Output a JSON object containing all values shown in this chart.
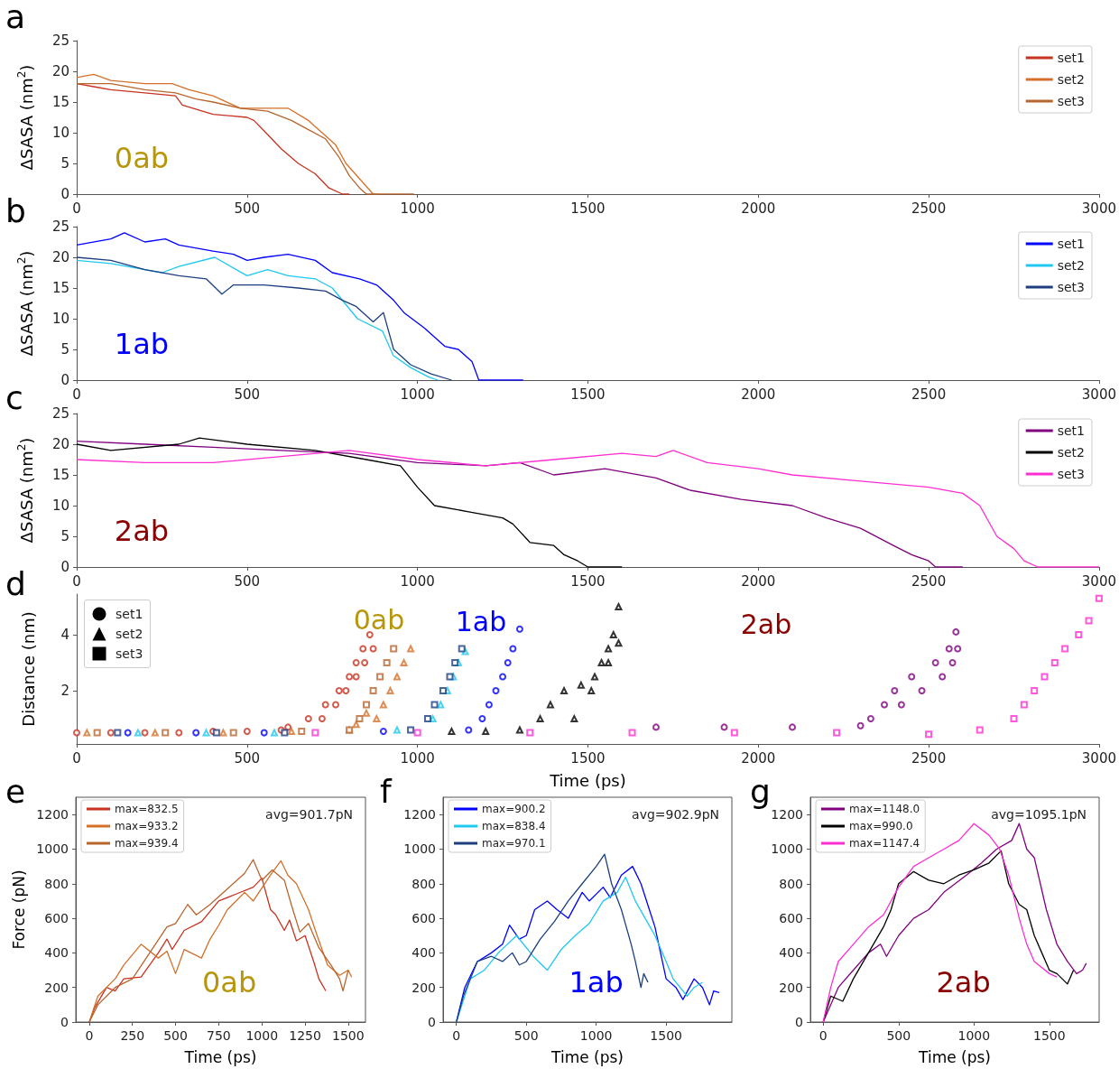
{
  "chart_data": [
    {
      "type": "line",
      "title": "a",
      "ylabel": "ΔSASA (nm$^{2}$)",
      "xlim": [
        0,
        3000
      ],
      "xticks": [
        0,
        500,
        1000,
        1500,
        2000,
        2500,
        3000
      ],
      "ylim": [
        0,
        25
      ],
      "yticks": [
        0,
        5,
        10,
        15,
        20,
        25
      ],
      "grid": false,
      "legend": "top right",
      "annotations": [
        "0ab"
      ],
      "series": [
        {
          "name": "set1",
          "color": "#c83220",
          "x": [
            0,
            50,
            100,
            200,
            290,
            310,
            400,
            500,
            520,
            550,
            600,
            650,
            700,
            740,
            780,
            800
          ],
          "values": [
            18,
            17.5,
            17,
            16.5,
            16,
            14.5,
            13,
            12.5,
            12,
            10.3,
            7.4,
            5,
            3.3,
            1,
            0,
            0
          ]
        },
        {
          "name": "set2",
          "color": "#d4702a",
          "x": [
            0,
            50,
            100,
            200,
            280,
            330,
            400,
            480,
            550,
            620,
            680,
            720,
            760,
            790,
            830,
            870,
            880
          ],
          "values": [
            19,
            19.5,
            18.5,
            18,
            18,
            17,
            16,
            14,
            14,
            14,
            12,
            10,
            8,
            5,
            2.5,
            0,
            0
          ]
        },
        {
          "name": "set3",
          "color": "#b8652e",
          "x": [
            0,
            100,
            200,
            290,
            350,
            400,
            480,
            560,
            630,
            680,
            730,
            770,
            800,
            830,
            850,
            990
          ],
          "values": [
            18,
            18,
            17,
            16.5,
            15.5,
            15,
            14,
            13.5,
            12,
            10.5,
            9,
            6,
            3,
            1,
            0,
            0
          ]
        }
      ]
    },
    {
      "type": "line",
      "title": "b",
      "ylabel": "ΔSASA (nm$^{2}$)",
      "xlim": [
        0,
        3000
      ],
      "xticks": [
        0,
        500,
        1000,
        1500,
        2000,
        2500,
        3000
      ],
      "ylim": [
        0,
        25
      ],
      "yticks": [
        0,
        5,
        10,
        15,
        20,
        25
      ],
      "grid": false,
      "legend": "top right",
      "annotations": [
        "1ab"
      ],
      "series": [
        {
          "name": "set1",
          "color": "#0000ff",
          "x": [
            0,
            100,
            140,
            200,
            260,
            300,
            400,
            460,
            500,
            550,
            620,
            700,
            750,
            830,
            880,
            930,
            960,
            1020,
            1080,
            1120,
            1160,
            1180,
            1310
          ],
          "values": [
            22,
            23,
            24,
            22.5,
            23,
            22,
            21,
            20.5,
            19.5,
            20,
            20.5,
            19.5,
            17.5,
            16.5,
            15.5,
            13,
            11,
            8.5,
            5.5,
            5,
            3,
            0,
            0
          ]
        },
        {
          "name": "set2",
          "color": "#1ec8f0",
          "x": [
            0,
            100,
            200,
            250,
            300,
            405,
            500,
            560,
            620,
            700,
            750,
            824,
            897,
            929,
            981,
            1033,
            1060
          ],
          "values": [
            19.5,
            19,
            18,
            17.5,
            18.5,
            20,
            17,
            18,
            17,
            16.5,
            15,
            10,
            8,
            4,
            2,
            0.5,
            0
          ]
        },
        {
          "name": "set3",
          "color": "#1d3f80",
          "x": [
            0,
            100,
            200,
            300,
            380,
            426,
            460,
            550,
            650,
            730,
            780,
            820,
            870,
            900,
            930,
            980,
            1040,
            1100
          ],
          "values": [
            20,
            19.5,
            18,
            17,
            16.5,
            14,
            15.5,
            15.5,
            15,
            14.5,
            13,
            12,
            9.5,
            11,
            5,
            2.5,
            1,
            0
          ]
        }
      ]
    },
    {
      "type": "line",
      "title": "c",
      "ylabel": "ΔSASA (nm$^{2}$)",
      "xlim": [
        0,
        3000
      ],
      "xticks": [
        0,
        500,
        1000,
        1500,
        2000,
        2500,
        3000
      ],
      "ylim": [
        0,
        25
      ],
      "yticks": [
        0,
        5,
        10,
        15,
        20,
        25
      ],
      "grid": false,
      "legend": "top right",
      "annotations": [
        "2ab"
      ],
      "series": [
        {
          "name": "set1",
          "color": "#800080",
          "x": [
            0,
            200,
            400,
            600,
            800,
            1000,
            1200,
            1300,
            1400,
            1550,
            1700,
            1800,
            1950,
            2100,
            2200,
            2300,
            2400,
            2450,
            2500,
            2520,
            2600
          ],
          "values": [
            20.5,
            20,
            19.5,
            19,
            18.5,
            17,
            16.5,
            17,
            15,
            16,
            14.5,
            12.5,
            11,
            10,
            8,
            6.3,
            3.4,
            2,
            1,
            0,
            0
          ]
        },
        {
          "name": "set2",
          "color": "#000000",
          "x": [
            0,
            100,
            300,
            360,
            500,
            700,
            850,
            950,
            1000,
            1050,
            1150,
            1250,
            1280,
            1330,
            1400,
            1430,
            1470,
            1500,
            1600
          ],
          "values": [
            20,
            19,
            20,
            21,
            20,
            19,
            17.5,
            16.5,
            13,
            10,
            9,
            8,
            7,
            4,
            3.5,
            2,
            1,
            0,
            0
          ]
        },
        {
          "name": "set3",
          "color": "#ff2ed2",
          "x": [
            0,
            200,
            400,
            600,
            800,
            1000,
            1200,
            1400,
            1600,
            1700,
            1750,
            1850,
            2000,
            2100,
            2300,
            2500,
            2600,
            2650,
            2700,
            2750,
            2780,
            2820,
            3000
          ],
          "values": [
            17.5,
            17,
            17,
            18,
            19,
            17.5,
            16.5,
            17.5,
            18.5,
            18,
            19,
            17,
            16,
            15,
            14,
            13,
            12,
            10,
            5,
            3,
            1,
            0,
            0
          ]
        }
      ]
    },
    {
      "type": "scatter",
      "title": "d",
      "xlabel": "Time (ps)",
      "ylabel": "Distance (nm)",
      "xlim": [
        0,
        3000
      ],
      "xticks": [
        0,
        500,
        1000,
        1500,
        2000,
        2500,
        3000
      ],
      "ylim": [
        0.1,
        5.45
      ],
      "yticks": [
        2,
        4
      ],
      "grid": false,
      "annotations": [
        "set1",
        "set2",
        "set3",
        "0ab",
        "1ab",
        "2ab"
      ],
      "series": [
        {
          "color": "#c83220",
          "marker": "circle",
          "x": [
            0,
            100,
            200,
            300,
            400,
            500,
            600,
            620,
            680,
            720,
            730,
            760,
            770,
            790,
            800,
            820,
            820,
            840,
            845,
            860,
            870
          ],
          "values": [
            0.5,
            0.5,
            0.5,
            0.5,
            0.55,
            0.55,
            0.6,
            0.7,
            1,
            1,
            1.5,
            1.5,
            2,
            2,
            2.5,
            2.5,
            3,
            3.5,
            3,
            4,
            3.5
          ]
        },
        {
          "color": "#d4702a",
          "marker": "triangle",
          "x": [
            30,
            230,
            430,
            630,
            800,
            820,
            850,
            880,
            900,
            920,
            940,
            960,
            980
          ],
          "values": [
            0.5,
            0.5,
            0.5,
            0.55,
            0.6,
            0.8,
            1.2,
            1,
            1.5,
            2,
            2.5,
            3,
            3.5
          ]
        },
        {
          "color": "#b8652e",
          "marker": "square",
          "x": [
            60,
            260,
            460,
            660,
            800,
            830,
            850,
            870,
            890,
            910,
            930
          ],
          "values": [
            0.5,
            0.5,
            0.5,
            0.55,
            0.6,
            1,
            1.5,
            2,
            2.5,
            3,
            3.5
          ]
        },
        {
          "color": "#0000ff",
          "marker": "circle",
          "x": [
            150,
            350,
            550,
            900,
            1150,
            1190,
            1210,
            1230,
            1250,
            1265,
            1280,
            1300
          ],
          "values": [
            0.5,
            0.5,
            0.5,
            0.55,
            0.6,
            1,
            1.5,
            2,
            2.5,
            3,
            3.5,
            4.2
          ]
        },
        {
          "color": "#1ec8f0",
          "marker": "triangle",
          "x": [
            180,
            380,
            580,
            940,
            1045,
            1068,
            1088,
            1105,
            1120,
            1140
          ],
          "values": [
            0.5,
            0.5,
            0.5,
            0.6,
            1,
            1.5,
            2,
            2.5,
            3,
            3.4
          ]
        },
        {
          "color": "#1d3f80",
          "marker": "square",
          "x": [
            120,
            410,
            610,
            980,
            1030,
            1050,
            1075,
            1095,
            1110,
            1130
          ],
          "values": [
            0.5,
            0.5,
            0.5,
            0.6,
            1,
            1.5,
            2,
            2.5,
            3,
            3.5
          ]
        },
        {
          "color": "#800080",
          "marker": "circle",
          "x": [
            1700,
            1900,
            2100,
            2300,
            2330,
            2370,
            2400,
            2420,
            2450,
            2480,
            2520,
            2540,
            2560,
            2570,
            2580,
            2585
          ],
          "values": [
            0.7,
            0.7,
            0.7,
            0.75,
            1,
            1.5,
            2,
            1.5,
            2.5,
            2,
            3,
            2.5,
            3.5,
            3,
            4.1,
            3.5
          ]
        },
        {
          "color": "#000000",
          "marker": "triangle",
          "x": [
            1100,
            1200,
            1300,
            1360,
            1390,
            1430,
            1460,
            1480,
            1510,
            1520,
            1540,
            1560,
            1560,
            1575,
            1590,
            1590
          ],
          "values": [
            0.55,
            0.55,
            0.6,
            1,
            1.5,
            2,
            1,
            2.2,
            2,
            2.5,
            3,
            3.5,
            3,
            4,
            5,
            3.7
          ]
        },
        {
          "color": "#ff2ed2",
          "marker": "square",
          "x": [
            700,
            1000,
            1330,
            1630,
            1930,
            2230,
            2500,
            2650,
            2750,
            2780,
            2810,
            2840,
            2870,
            2900,
            2940,
            2970,
            3000
          ],
          "values": [
            0.5,
            0.5,
            0.5,
            0.5,
            0.5,
            0.5,
            0.45,
            0.6,
            1,
            1.5,
            2,
            2.5,
            3,
            3.5,
            4,
            4.5,
            5.3
          ]
        }
      ]
    },
    {
      "type": "line",
      "title": "e",
      "xlabel": "Time (ps)",
      "ylabel": "Force (pN)",
      "xlim": [
        -78,
        1600
      ],
      "xticks": [
        0,
        250,
        500,
        750,
        1000,
        1250,
        1500
      ],
      "ylim": [
        0,
        1300
      ],
      "yticks": [
        0,
        200,
        400,
        600,
        800,
        1000,
        1200
      ],
      "grid": false,
      "legend": "top left",
      "annotations": [
        "avg=901.7pN",
        "0ab"
      ],
      "series": [
        {
          "name": "max=832.5",
          "color": "#c83220",
          "x": [
            0,
            30,
            100,
            150,
            200,
            300,
            400,
            450,
            480,
            550,
            650,
            750,
            850,
            950,
            1000,
            1050,
            1080,
            1130,
            1160,
            1200,
            1250,
            1300,
            1330,
            1370
          ],
          "values": [
            0,
            80,
            200,
            180,
            250,
            260,
            400,
            480,
            420,
            530,
            580,
            700,
            740,
            780,
            832,
            650,
            620,
            530,
            590,
            470,
            500,
            350,
            250,
            180
          ]
        },
        {
          "name": "max=933.2",
          "color": "#d4702a",
          "x": [
            0,
            50,
            150,
            200,
            300,
            400,
            450,
            500,
            550,
            650,
            700,
            750,
            800,
            900,
            950,
            1050,
            1110,
            1150,
            1200,
            1270,
            1320,
            1380,
            1450,
            1500,
            1520
          ],
          "values": [
            0,
            150,
            250,
            330,
            450,
            370,
            410,
            280,
            420,
            370,
            480,
            560,
            650,
            750,
            700,
            850,
            933,
            850,
            800,
            650,
            500,
            330,
            270,
            300,
            260
          ]
        },
        {
          "name": "max=939.4",
          "color": "#b8652e",
          "x": [
            0,
            50,
            150,
            250,
            350,
            450,
            500,
            570,
            620,
            700,
            800,
            900,
            950,
            1000,
            1060,
            1130,
            1170,
            1220,
            1270,
            1330,
            1400,
            1450,
            1470,
            1500
          ],
          "values": [
            0,
            100,
            200,
            250,
            400,
            550,
            570,
            680,
            620,
            680,
            770,
            860,
            939,
            820,
            880,
            820,
            680,
            520,
            570,
            430,
            330,
            250,
            180,
            300
          ]
        }
      ]
    },
    {
      "type": "line",
      "title": "f",
      "xlabel": "Time (ps)",
      "xlim": [
        -95,
        1970
      ],
      "xticks": [
        0,
        500,
        1000,
        1500
      ],
      "ylim": [
        0,
        1300
      ],
      "yticks": [
        0,
        200,
        400,
        600,
        800,
        1000,
        1200
      ],
      "grid": false,
      "legend": "top left",
      "annotations": [
        "avg=902.9pN",
        "1ab"
      ],
      "series": [
        {
          "name": "max=900.2",
          "color": "#0000ff",
          "x": [
            0,
            60,
            150,
            250,
            330,
            380,
            450,
            500,
            560,
            650,
            720,
            800,
            900,
            950,
            1050,
            1100,
            1180,
            1260,
            1320,
            1380,
            1420,
            1460,
            1500,
            1570,
            1620,
            1700,
            1760,
            1810,
            1840,
            1880
          ],
          "values": [
            0,
            200,
            350,
            400,
            450,
            560,
            480,
            500,
            650,
            700,
            650,
            600,
            750,
            700,
            780,
            720,
            850,
            900,
            800,
            650,
            550,
            400,
            250,
            200,
            130,
            250,
            200,
            100,
            180,
            170
          ]
        },
        {
          "name": "max=838.4",
          "color": "#1ec8f0",
          "x": [
            0,
            100,
            200,
            300,
            430,
            550,
            650,
            750,
            850,
            950,
            1050,
            1150,
            1210,
            1280,
            1350,
            1420,
            1500,
            1550,
            1600,
            1650,
            1700,
            1760
          ],
          "values": [
            0,
            250,
            300,
            400,
            500,
            380,
            300,
            420,
            500,
            570,
            700,
            750,
            838,
            700,
            600,
            500,
            350,
            250,
            200,
            150,
            200,
            230
          ]
        },
        {
          "name": "max=970.1",
          "color": "#1d3f80",
          "x": [
            0,
            50,
            150,
            250,
            330,
            400,
            450,
            500,
            600,
            700,
            800,
            900,
            1000,
            1060,
            1110,
            1180,
            1250,
            1280,
            1320,
            1340,
            1370
          ],
          "values": [
            0,
            150,
            350,
            380,
            350,
            400,
            330,
            350,
            480,
            580,
            700,
            800,
            900,
            970,
            800,
            650,
            450,
            350,
            200,
            280,
            230
          ]
        }
      ]
    },
    {
      "type": "line",
      "title": "g",
      "xlabel": "Time (ps)",
      "xlim": [
        -85,
        1830
      ],
      "xticks": [
        0,
        500,
        1000,
        1500
      ],
      "ylim": [
        0,
        1300
      ],
      "yticks": [
        0,
        200,
        400,
        600,
        800,
        1000,
        1200
      ],
      "grid": false,
      "legend": "top left",
      "annotations": [
        "avg=1095.1pN",
        "2ab"
      ],
      "series": [
        {
          "name": "max=1148.0",
          "color": "#800080",
          "x": [
            0,
            100,
            200,
            300,
            380,
            420,
            500,
            600,
            700,
            800,
            950,
            1050,
            1150,
            1250,
            1300,
            1350,
            1400,
            1480,
            1550,
            1620,
            1680,
            1720,
            1745
          ],
          "values": [
            0,
            200,
            300,
            400,
            450,
            380,
            500,
            600,
            650,
            750,
            850,
            920,
            1000,
            1050,
            1148,
            1000,
            950,
            650,
            450,
            350,
            280,
            300,
            340
          ]
        },
        {
          "name": "max=990.0",
          "color": "#000000",
          "x": [
            0,
            50,
            130,
            200,
            300,
            400,
            450,
            500,
            600,
            700,
            800,
            900,
            1000,
            1100,
            1180,
            1230,
            1300,
            1350,
            1400,
            1450,
            1500,
            1550,
            1620,
            1660
          ],
          "values": [
            0,
            150,
            120,
            250,
            400,
            550,
            650,
            800,
            870,
            820,
            800,
            850,
            880,
            920,
            990,
            800,
            680,
            650,
            500,
            400,
            300,
            280,
            220,
            300
          ]
        },
        {
          "name": "max=1147.4",
          "color": "#ff2ed2",
          "x": [
            0,
            50,
            100,
            200,
            300,
            400,
            500,
            600,
            700,
            800,
            900,
            1000,
            1100,
            1170,
            1230,
            1300,
            1350,
            1400,
            1500,
            1550
          ],
          "values": [
            0,
            200,
            350,
            450,
            550,
            620,
            780,
            900,
            950,
            1000,
            1050,
            1147,
            1080,
            1000,
            850,
            600,
            450,
            350,
            280,
            260
          ]
        }
      ]
    }
  ]
}
